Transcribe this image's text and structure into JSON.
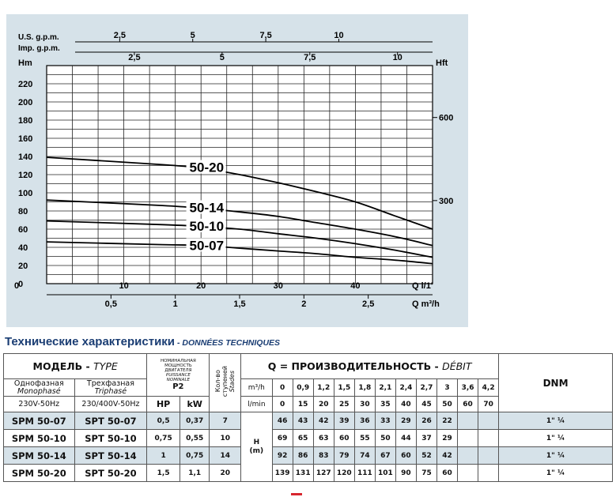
{
  "chart_data": {
    "type": "line",
    "y_left_label": "Hm",
    "y_right_label": "Hft",
    "x_top1_label": "U.S. g.p.m.",
    "x_top2_label": "Imp. g.p.m.",
    "x_bottom1_label": "Q l/1'",
    "x_bottom2_label": "Q m³/h",
    "y_left_ticks": [
      "0",
      "20",
      "40",
      "60",
      "80",
      "100",
      "120",
      "140",
      "160",
      "180",
      "200",
      "220"
    ],
    "y_right_ticks": [
      "300",
      "600"
    ],
    "x_ticks_lmin": [
      "0",
      "10",
      "20",
      "30",
      "40"
    ],
    "x_ticks_m3h": [
      "0,5",
      "1",
      "1,5",
      "2",
      "2,5"
    ],
    "x_ticks_us_gpm": [
      "2,5",
      "5",
      "7,5",
      "10"
    ],
    "x_ticks_imp_gpm": [
      "2,5",
      "5",
      "7,5",
      "10"
    ],
    "xlim_lmin": [
      0,
      50
    ],
    "ylim_hm": [
      0,
      240
    ],
    "series": [
      {
        "name": "50-20",
        "q_lmin": [
          0,
          15,
          20,
          25,
          30,
          35,
          40,
          45,
          50
        ],
        "h_m": [
          139,
          131,
          127,
          120,
          111,
          101,
          90,
          75,
          60
        ]
      },
      {
        "name": "50-14",
        "q_lmin": [
          0,
          15,
          20,
          25,
          30,
          35,
          40,
          45,
          50
        ],
        "h_m": [
          92,
          86,
          83,
          79,
          74,
          67,
          60,
          52,
          42
        ]
      },
      {
        "name": "50-10",
        "q_lmin": [
          0,
          15,
          20,
          25,
          30,
          35,
          40,
          45,
          50
        ],
        "h_m": [
          69,
          65,
          63,
          60,
          55,
          50,
          44,
          37,
          29
        ]
      },
      {
        "name": "50-07",
        "q_lmin": [
          0,
          15,
          20,
          25,
          30,
          35,
          40,
          45,
          50
        ],
        "h_m": [
          46,
          43,
          42,
          39,
          36,
          33,
          29,
          26,
          22
        ]
      }
    ],
    "curve_color": "#000000"
  },
  "section_title": {
    "ru": "Технические характеристики",
    "sep": " - ",
    "fr": "DONNÉES TECHNIQUES"
  },
  "table": {
    "model_header": {
      "ru": "МОДЕЛЬ",
      "sep": " - ",
      "fr": "TYPE"
    },
    "mono": {
      "ru": "Однофазная",
      "fr": "Monophasé",
      "spec": "230V-50Hz"
    },
    "tri": {
      "ru": "Трехфазная",
      "fr": "Triphasé",
      "spec": "230/400V-50Hz"
    },
    "power": {
      "ru1": "НОМИНАЛЬНАЯ",
      "ru2": "МОЩНОСТЬ",
      "ru3": "ДВИГАТЕЛЯ",
      "fr1": "PUISSANCE",
      "fr2": "NOMINALE",
      "label": "P2",
      "hp": "HP",
      "kw": "kW"
    },
    "stages": {
      "ru1": "Кол-во",
      "ru2": "ступеней",
      "fr": "Stades"
    },
    "flow_header": {
      "ru": "Q = ПРОИЗВОДИТЕЛЬНОСТЬ",
      "sep": " - ",
      "fr": "DÉBIT"
    },
    "unit_m3h": "m³/h",
    "unit_lmin": "l/min",
    "m3h_values": [
      "0",
      "0,9",
      "1,2",
      "1,5",
      "1,8",
      "2,1",
      "2,4",
      "2,7",
      "3",
      "3,6",
      "4,2"
    ],
    "lmin_values": [
      "0",
      "15",
      "20",
      "25",
      "30",
      "35",
      "40",
      "45",
      "50",
      "60",
      "70"
    ],
    "dnm": "DNM",
    "h_label1": "H",
    "h_label2": "(m)",
    "rows": [
      {
        "mono": "SPM 50-07",
        "tri": "SPT 50-07",
        "hp": "0,5",
        "kw": "0,37",
        "stages": "7",
        "heads": [
          "46",
          "43",
          "42",
          "39",
          "36",
          "33",
          "29",
          "26",
          "22",
          "",
          ""
        ],
        "dnm": "1\" ¼"
      },
      {
        "mono": "SPM 50-10",
        "tri": "SPT 50-10",
        "hp": "0,75",
        "kw": "0,55",
        "stages": "10",
        "heads": [
          "69",
          "65",
          "63",
          "60",
          "55",
          "50",
          "44",
          "37",
          "29",
          "",
          ""
        ],
        "dnm": "1\" ¼"
      },
      {
        "mono": "SPM 50-14",
        "tri": "SPT 50-14",
        "hp": "1",
        "kw": "0,75",
        "stages": "14",
        "heads": [
          "92",
          "86",
          "83",
          "79",
          "74",
          "67",
          "60",
          "52",
          "42",
          "",
          ""
        ],
        "dnm": "1\" ¼"
      },
      {
        "mono": "SPM 50-20",
        "tri": "SPT 50-20",
        "hp": "1,5",
        "kw": "1,1",
        "stages": "20",
        "heads": [
          "139",
          "131",
          "127",
          "120",
          "111",
          "101",
          "90",
          "75",
          "60",
          "",
          ""
        ],
        "dnm": "1\" ¼"
      }
    ]
  }
}
